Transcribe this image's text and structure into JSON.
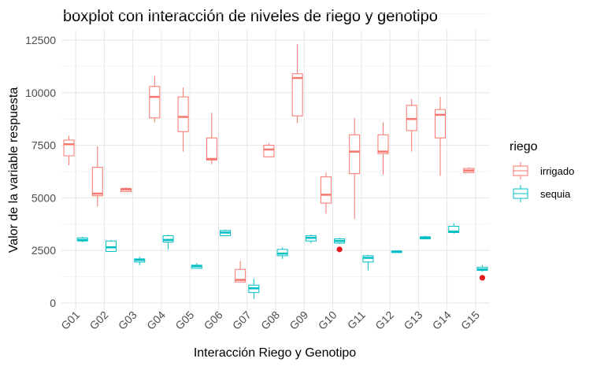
{
  "chart_data": {
    "type": "boxplot",
    "title": "boxplot con interacción de niveles de riego y genotipo",
    "xlabel": "Interacción Riego y Genotipo",
    "ylabel": "Valor de la variable respuesta",
    "ylim": [
      0,
      13000
    ],
    "yticks": [
      0,
      2500,
      5000,
      7500,
      10000,
      12500
    ],
    "yticklabels": [
      "0",
      "2500",
      "5000",
      "7500",
      "10000",
      "12500"
    ],
    "grid": true,
    "legend": {
      "title": "riego",
      "position": "right",
      "entries": [
        {
          "label": "irrigado",
          "color": "#F8766D"
        },
        {
          "label": "sequia",
          "color": "#00BFC4"
        }
      ]
    },
    "outlier_color": "#E41A1C",
    "categories": [
      "G01",
      "G02",
      "G03",
      "G04",
      "G05",
      "G06",
      "G07",
      "G08",
      "G09",
      "G10",
      "G11",
      "G12",
      "G13",
      "G14",
      "G15"
    ],
    "series": [
      {
        "name": "irrigado",
        "color": "#F8766D",
        "boxes": [
          {
            "min": 6550,
            "q1": 7000,
            "median": 7550,
            "q3": 7750,
            "max": 7950
          },
          {
            "min": 4600,
            "q1": 5100,
            "median": 5200,
            "q3": 6450,
            "max": 7450
          },
          {
            "min": 5300,
            "q1": 5300,
            "median": 5400,
            "q3": 5450,
            "max": 5500
          },
          {
            "min": 8600,
            "q1": 8800,
            "median": 9800,
            "q3": 10300,
            "max": 10800
          },
          {
            "min": 7200,
            "q1": 8150,
            "median": 8850,
            "q3": 9800,
            "max": 10250
          },
          {
            "min": 6600,
            "q1": 6800,
            "median": 6850,
            "q3": 7850,
            "max": 9050
          },
          {
            "min": 1000,
            "q1": 1000,
            "median": 1100,
            "q3": 1600,
            "max": 2000
          },
          {
            "min": 6950,
            "q1": 6950,
            "median": 7300,
            "q3": 7500,
            "max": 7600
          },
          {
            "min": 8550,
            "q1": 8900,
            "median": 10700,
            "q3": 10900,
            "max": 12300
          },
          {
            "min": 4250,
            "q1": 4750,
            "median": 5150,
            "q3": 6000,
            "max": 6200
          },
          {
            "min": 4000,
            "q1": 6150,
            "median": 7200,
            "q3": 8000,
            "max": 8800
          },
          {
            "min": 6100,
            "q1": 7100,
            "median": 7200,
            "q3": 8000,
            "max": 8600
          },
          {
            "min": 7200,
            "q1": 8200,
            "median": 8750,
            "q3": 9400,
            "max": 9700
          },
          {
            "min": 6050,
            "q1": 7850,
            "median": 8950,
            "q3": 9200,
            "max": 9800
          },
          {
            "min": 6200,
            "q1": 6200,
            "median": 6300,
            "q3": 6400,
            "max": 6450
          }
        ]
      },
      {
        "name": "sequia",
        "color": "#00BFC4",
        "boxes": [
          {
            "min": 2900,
            "q1": 2950,
            "median": 3000,
            "q3": 3100,
            "max": 3150
          },
          {
            "min": 2450,
            "q1": 2450,
            "median": 2650,
            "q3": 2950,
            "max": 3000
          },
          {
            "min": 1800,
            "q1": 1950,
            "median": 2050,
            "q3": 2100,
            "max": 2200
          },
          {
            "min": 2550,
            "q1": 2900,
            "median": 3000,
            "q3": 3200,
            "max": 3250
          },
          {
            "min": 1650,
            "q1": 1650,
            "median": 1750,
            "q3": 1800,
            "max": 1900
          },
          {
            "min": 3200,
            "q1": 3200,
            "median": 3350,
            "q3": 3450,
            "max": 3500
          },
          {
            "min": 200,
            "q1": 500,
            "median": 700,
            "q3": 850,
            "max": 1150
          },
          {
            "min": 2100,
            "q1": 2250,
            "median": 2350,
            "q3": 2550,
            "max": 2650
          },
          {
            "min": 2850,
            "q1": 2950,
            "median": 3100,
            "q3": 3200,
            "max": 3250
          },
          {
            "min": 2800,
            "q1": 2850,
            "median": 2950,
            "q3": 3050,
            "max": 3100,
            "outliers": [
              2550
            ]
          },
          {
            "min": 1550,
            "q1": 1950,
            "median": 2150,
            "q3": 2250,
            "max": 2300
          },
          {
            "min": 2400,
            "q1": 2400,
            "median": 2450,
            "q3": 2450,
            "max": 2500
          },
          {
            "min": 3050,
            "q1": 3050,
            "median": 3100,
            "q3": 3150,
            "max": 3200
          },
          {
            "min": 3300,
            "q1": 3350,
            "median": 3400,
            "q3": 3650,
            "max": 3800
          },
          {
            "min": 1500,
            "q1": 1550,
            "median": 1600,
            "q3": 1700,
            "max": 1800,
            "outliers": [
              1200
            ]
          }
        ]
      }
    ]
  }
}
